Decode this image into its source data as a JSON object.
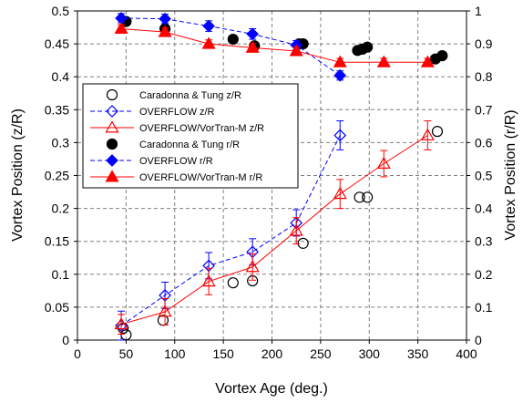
{
  "chart_data": {
    "type": "scatter",
    "xlabel": "Vortex Age (deg.)",
    "ylabel_left": "Vortex Position (z/R)",
    "ylabel_right": "Vortex Position (r/R)",
    "xlim": [
      0,
      400
    ],
    "ylim_left": [
      0,
      0.5
    ],
    "ylim_right": [
      0,
      1
    ],
    "x_ticks": [
      "0",
      "50",
      "100",
      "150",
      "200",
      "250",
      "300",
      "350",
      "400"
    ],
    "y_left_ticks": [
      "0",
      "0.05",
      "0.1",
      "0.15",
      "0.2",
      "0.25",
      "0.3",
      "0.35",
      "0.4",
      "0.45",
      "0.5"
    ],
    "y_right_ticks": [
      "0",
      "0.1",
      "0.2",
      "0.3",
      "0.4",
      "0.5",
      "0.6",
      "0.7",
      "0.8",
      "0.9",
      "1"
    ],
    "grid": true,
    "legend_position": "center-left",
    "series": [
      {
        "name": "Caradonna & Tung z/R",
        "axis": "left",
        "marker": "open-circle",
        "line": "none",
        "color": "#000000",
        "x": [
          47,
          50,
          88,
          160,
          180,
          232,
          290,
          298,
          370
        ],
        "y": [
          0.018,
          0.008,
          0.03,
          0.087,
          0.09,
          0.147,
          0.217,
          0.217,
          0.317
        ]
      },
      {
        "name": "OVERFLOW z/R",
        "axis": "left",
        "marker": "open-diamond",
        "line": "dashed",
        "color": "#0000ff",
        "x": [
          45,
          90,
          135,
          180,
          225,
          270
        ],
        "y": [
          0.022,
          0.068,
          0.113,
          0.134,
          0.178,
          0.311
        ],
        "err": [
          0.022,
          0.02,
          0.02,
          0.02,
          0.02,
          0.022
        ]
      },
      {
        "name": "OVERFLOW/VorTran-M z/R",
        "axis": "left",
        "marker": "open-triangle",
        "line": "solid",
        "color": "#ff0000",
        "x": [
          45,
          90,
          135,
          180,
          225,
          270,
          315,
          360
        ],
        "y": [
          0.024,
          0.043,
          0.089,
          0.111,
          0.166,
          0.222,
          0.268,
          0.311
        ],
        "err": [
          0.015,
          0.02,
          0.02,
          0.02,
          0.02,
          0.022,
          0.02,
          0.022
        ]
      },
      {
        "name": "Caradonna & Tung r/R",
        "axis": "right",
        "marker": "filled-circle",
        "line": "none",
        "color": "#000000",
        "x": [
          50,
          90,
          160,
          182,
          228,
          232,
          288,
          293,
          298,
          368,
          375
        ],
        "y": [
          0.968,
          0.946,
          0.914,
          0.894,
          0.9,
          0.9,
          0.88,
          0.884,
          0.89,
          0.854,
          0.864
        ]
      },
      {
        "name": "OVERFLOW r/R",
        "axis": "right",
        "marker": "filled-diamond",
        "line": "dashed",
        "color": "#0000ff",
        "x": [
          45,
          90,
          135,
          180,
          225,
          270
        ],
        "y": [
          0.978,
          0.976,
          0.954,
          0.93,
          0.896,
          0.804
        ],
        "err": [
          0.014,
          0.014,
          0.016,
          0.016,
          0.014,
          0.014
        ]
      },
      {
        "name": "OVERFLOW/VorTran-M r/R",
        "axis": "right",
        "marker": "filled-triangle",
        "line": "solid",
        "color": "#ff0000",
        "x": [
          45,
          90,
          135,
          180,
          225,
          270,
          315,
          360
        ],
        "y": [
          0.946,
          0.936,
          0.9,
          0.888,
          0.878,
          0.844,
          0.844,
          0.844
        ],
        "err": [
          0.012,
          0.012,
          0.012,
          0.012,
          0.012,
          0.012,
          0.012,
          0.012
        ]
      }
    ]
  }
}
